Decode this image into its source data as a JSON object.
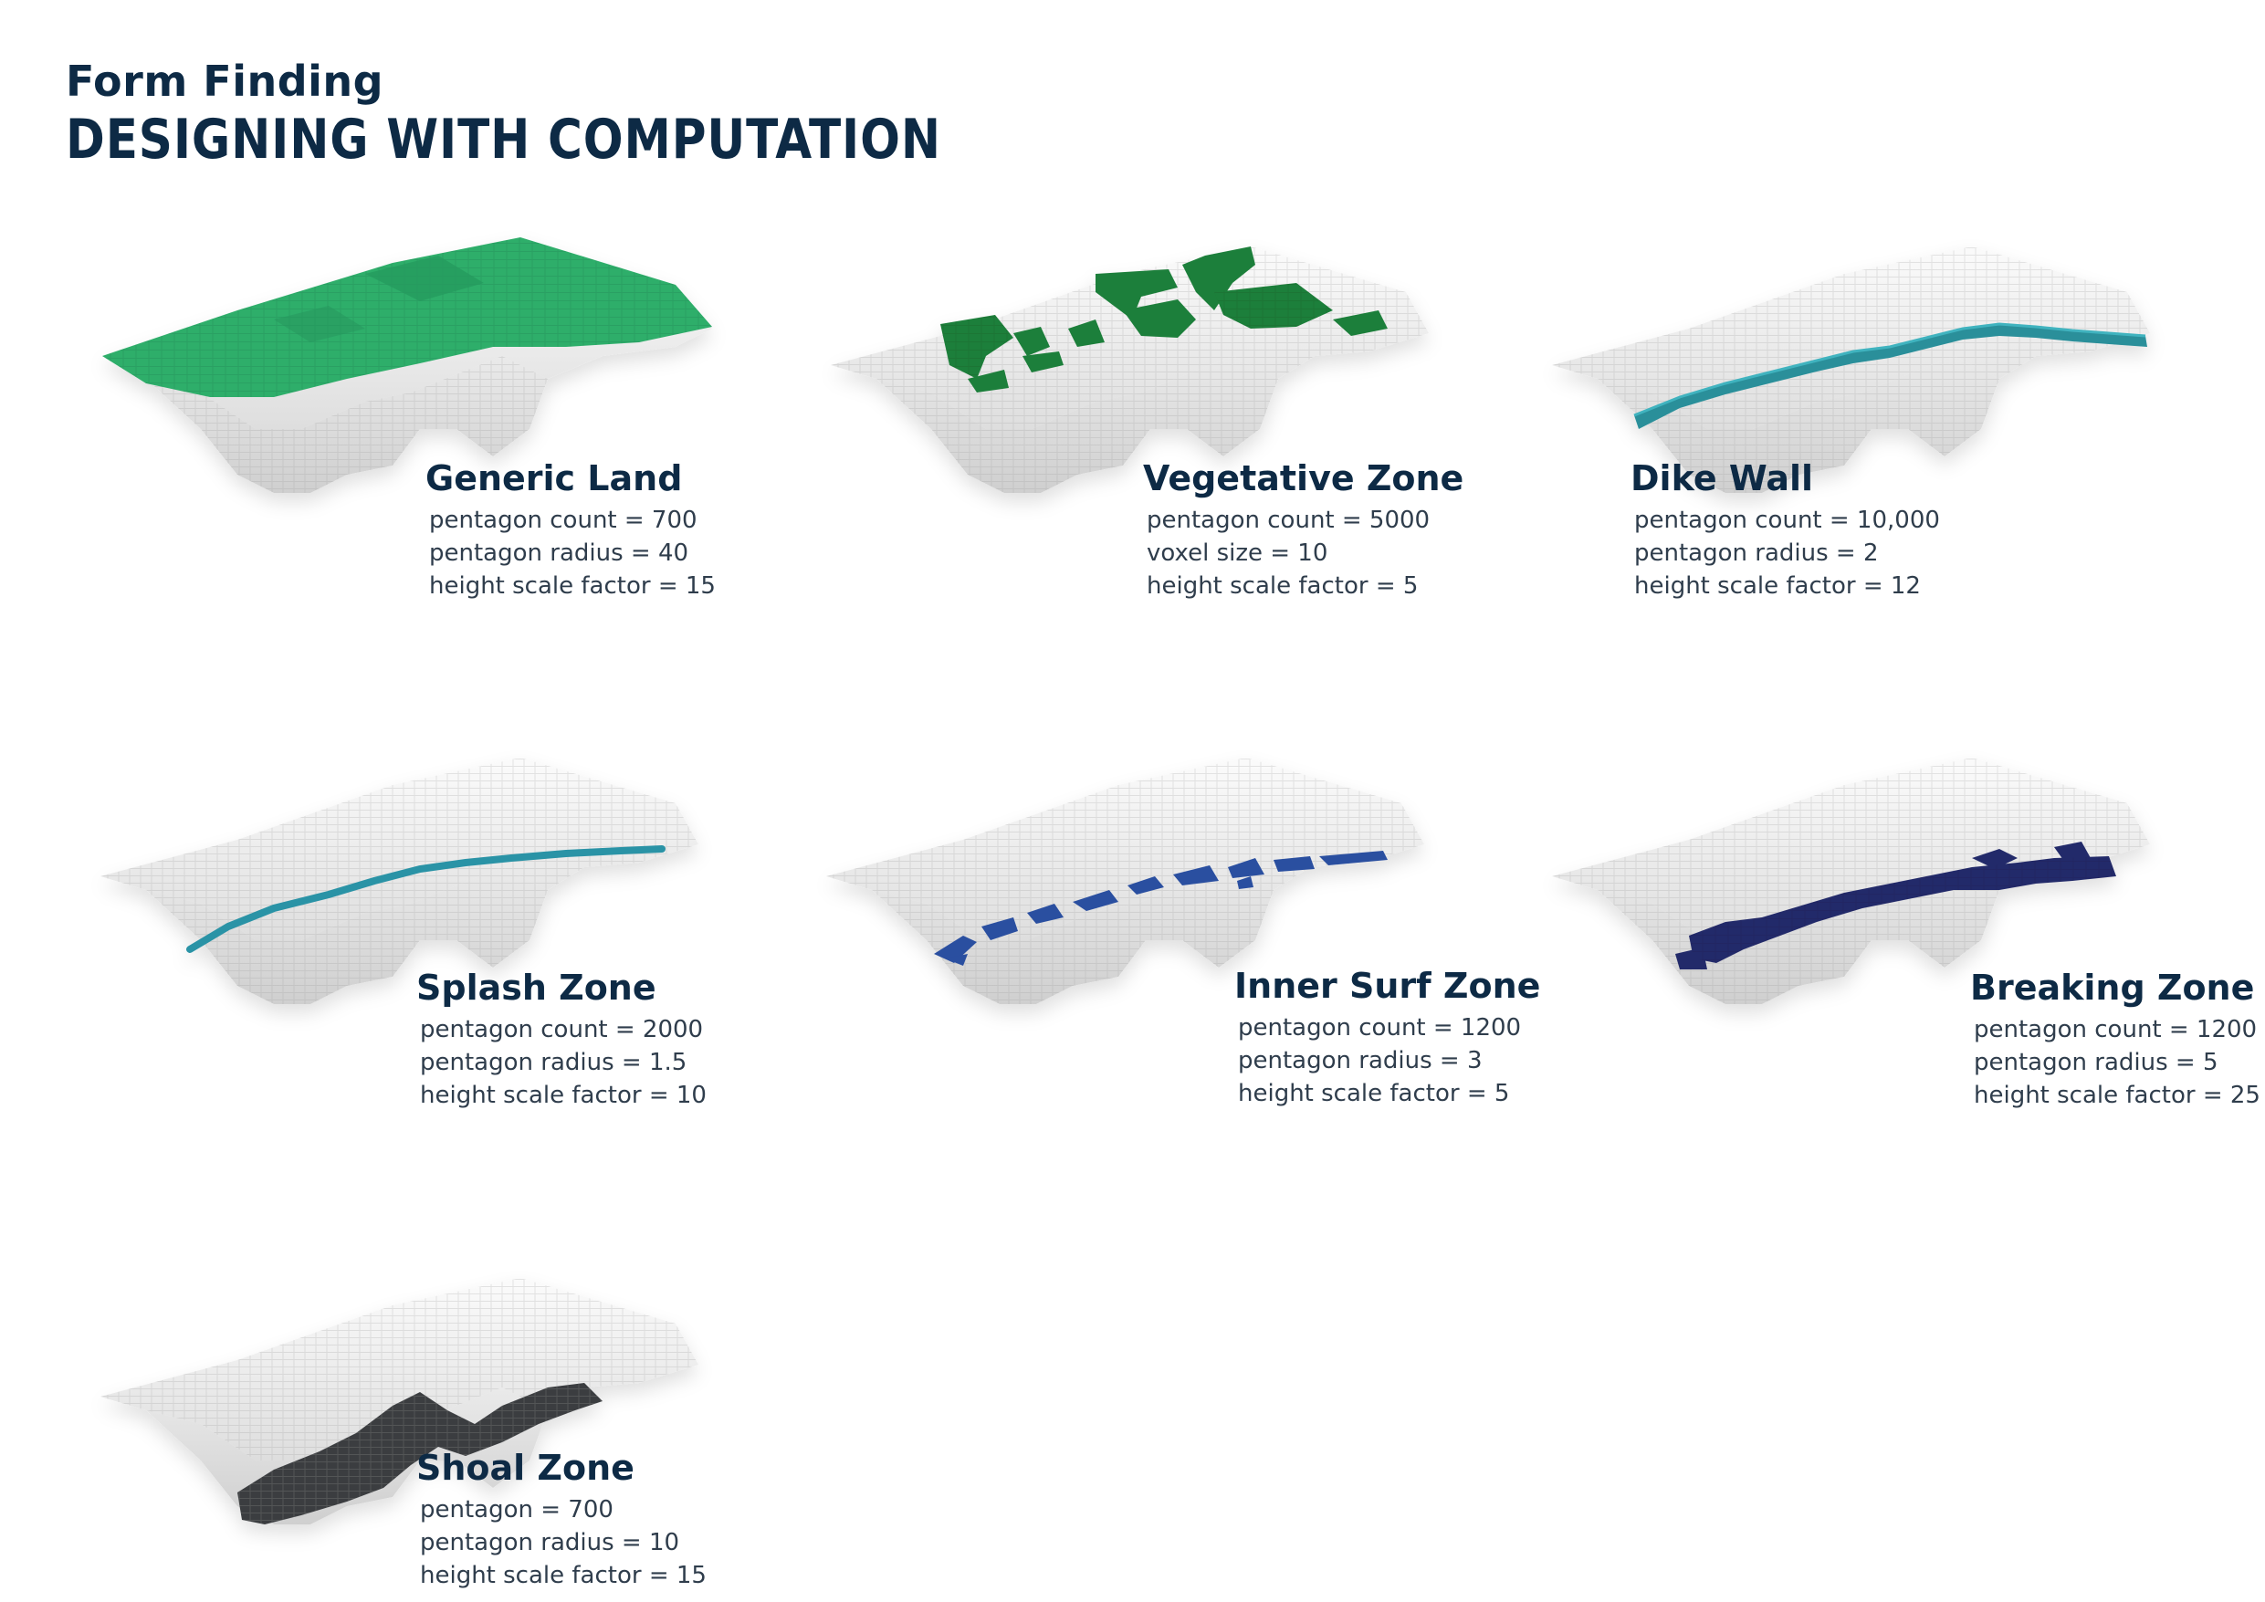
{
  "header": {
    "subtitle": "Form Finding",
    "title": "DESIGNING WITH COMPUTATION"
  },
  "colors": {
    "text_dark": "#0d2a45",
    "land_white": "#f2f2f2",
    "generic_land": "#2eae6b",
    "vegetative": "#1f7f3a",
    "dike_wall": "#2a8f9a",
    "splash": "#2b93a6",
    "inner_surf": "#2b4fa0",
    "breaking": "#242b6b",
    "shoal": "#3a3d40"
  },
  "panels": [
    {
      "title": "Generic Land",
      "zone_color": "generic_land",
      "params": [
        "pentagon count = 700",
        "pentagon radius = 40",
        "height scale factor = 15"
      ]
    },
    {
      "title": "Vegetative Zone",
      "zone_color": "vegetative",
      "params": [
        "pentagon count = 5000",
        "voxel size = 10",
        "height scale factor = 5"
      ]
    },
    {
      "title": "Dike Wall",
      "zone_color": "dike_wall",
      "params": [
        "pentagon count = 10,000",
        "pentagon radius = 2",
        "height scale factor = 12"
      ]
    },
    {
      "title": "Splash Zone",
      "zone_color": "splash",
      "params": [
        "pentagon count = 2000",
        "pentagon radius = 1.5",
        "height scale factor = 10"
      ]
    },
    {
      "title": "Inner Surf Zone",
      "zone_color": "inner_surf",
      "params": [
        "pentagon count = 1200",
        "pentagon radius = 3",
        "height scale factor = 5"
      ]
    },
    {
      "title": "Breaking Zone",
      "zone_color": "breaking",
      "params": [
        "pentagon count = 1200",
        "pentagon radius = 5",
        "height scale factor = 25"
      ]
    },
    {
      "title": "Shoal Zone",
      "zone_color": "shoal",
      "params": [
        "pentagon = 700",
        "pentagon radius = 10",
        "height scale factor = 15"
      ]
    }
  ]
}
